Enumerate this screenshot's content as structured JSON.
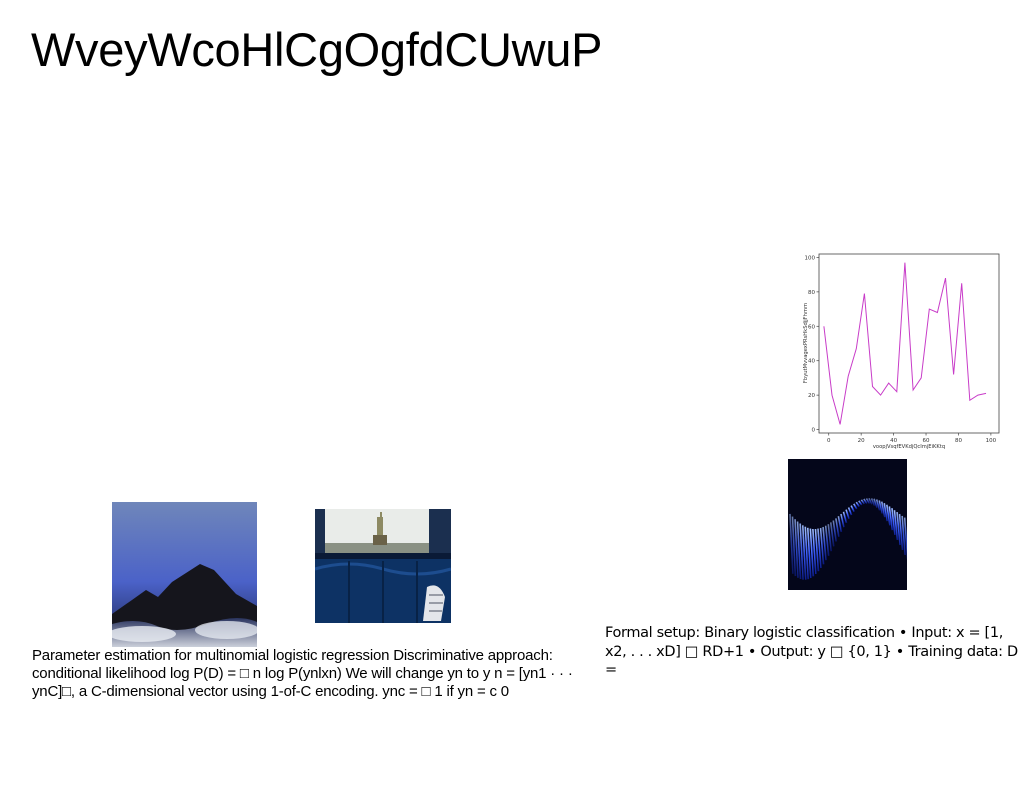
{
  "slide": {
    "title": "WveyWcoHlCgOgfdCUwuP",
    "text_left": "Parameter estimation for multinomial logistic regression Discriminative approach: conditional likelihood log P(D) = □ n log P(ynlxn) We will change yn to y n = [yn1 · · · ynC]□, a C-dimensional vector using 1-of-C encoding. ync = □ 1 if yn = c 0",
    "text_right": "Formal setup: Binary logistic classification • Input: x = [1, x2, . . . xD] □ RD+1 • Output: y □ {0, 1} • Training data: D ="
  },
  "images": {
    "mountain": "dark-mountain-photo",
    "window": "statue-of-liberty-window-photo",
    "wave": "blue-wave-abstract-photo"
  },
  "chart_data": {
    "type": "line",
    "xlabel": "voopjVsqfEVKdjQcImjEiKKtq",
    "ylabel": "FbyutMvvagexPRsHkSdjjFhmm",
    "xlim": [
      -6,
      105
    ],
    "ylim": [
      -2,
      102
    ],
    "xticks": [
      "0",
      "20",
      "40",
      "60",
      "80",
      "100"
    ],
    "yticks": [
      "0",
      "20",
      "40",
      "60",
      "80",
      "100"
    ],
    "grid": false,
    "color": "#c83cc8",
    "x": [
      -3,
      2,
      7,
      12,
      17,
      22,
      27,
      32,
      37,
      42,
      47,
      52,
      57,
      62,
      67,
      72,
      77,
      82,
      87,
      92,
      97
    ],
    "y": [
      60,
      20,
      3,
      31,
      47,
      79,
      25,
      20,
      27,
      22,
      97,
      23,
      30,
      70,
      68,
      88,
      32,
      85,
      17,
      20,
      21
    ]
  }
}
